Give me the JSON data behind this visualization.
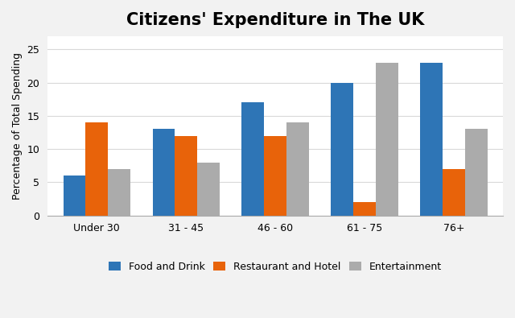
{
  "title": "Citizens' Expenditure in The UK",
  "ylabel": "Percentage of Total Spending",
  "categories": [
    "Under 30",
    "31 - 45",
    "46 - 60",
    "61 - 75",
    "76+"
  ],
  "series": {
    "Food and Drink": [
      6,
      13,
      17,
      20,
      23
    ],
    "Restaurant and Hotel": [
      14,
      12,
      12,
      2,
      7
    ],
    "Entertainment": [
      7,
      8,
      14,
      23,
      13
    ]
  },
  "colors": {
    "Food and Drink": "#2E75B6",
    "Restaurant and Hotel": "#E8630A",
    "Entertainment": "#ABABAB"
  },
  "ylim": [
    0,
    27
  ],
  "yticks": [
    0,
    5,
    10,
    15,
    20,
    25
  ],
  "bar_width": 0.25,
  "legend_labels": [
    "Food and Drink",
    "Restaurant and Hotel",
    "Entertainment"
  ],
  "background_color": "#F2F2F2",
  "plot_bg_color": "#FFFFFF",
  "grid_color": "#D9D9D9",
  "title_fontsize": 15,
  "axis_fontsize": 9,
  "legend_fontsize": 9,
  "tick_fontsize": 9
}
